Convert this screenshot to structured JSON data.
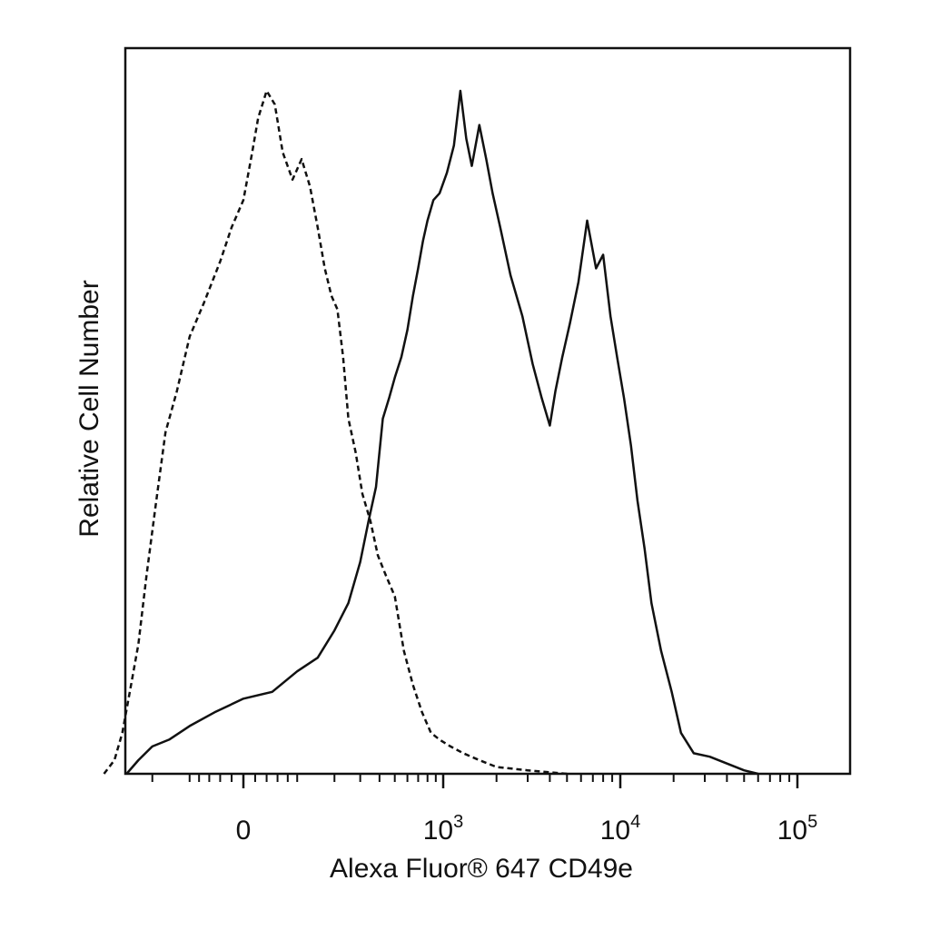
{
  "chart_data": {
    "type": "line",
    "title": "",
    "xlabel": "Alexa Fluor® 647 CD49e",
    "ylabel": "Relative Cell Number",
    "x_scale": "biexponential",
    "xlim": [
      -500,
      200000
    ],
    "ylim": [
      0,
      100
    ],
    "grid": false,
    "legend": "none",
    "x_tick_labels": [
      {
        "value": 0,
        "base": "0",
        "exp": ""
      },
      {
        "value": 1000,
        "base": "10",
        "exp": "3"
      },
      {
        "value": 10000,
        "base": "10",
        "exp": "4"
      },
      {
        "value": 100000,
        "base": "10",
        "exp": "5"
      }
    ],
    "series": [
      {
        "style": "dashed",
        "color": "#111111",
        "points": [
          [
            -420,
            0
          ],
          [
            -360,
            2
          ],
          [
            -320,
            6
          ],
          [
            -280,
            13
          ],
          [
            -250,
            19
          ],
          [
            -220,
            29
          ],
          [
            -190,
            39
          ],
          [
            -160,
            50
          ],
          [
            -130,
            56
          ],
          [
            -100,
            64
          ],
          [
            -70,
            69
          ],
          [
            -40,
            75
          ],
          [
            -20,
            80
          ],
          [
            0,
            84
          ],
          [
            15,
            91
          ],
          [
            25,
            96
          ],
          [
            40,
            100
          ],
          [
            55,
            98
          ],
          [
            70,
            91
          ],
          [
            90,
            87
          ],
          [
            110,
            90
          ],
          [
            130,
            86
          ],
          [
            150,
            80
          ],
          [
            170,
            74
          ],
          [
            190,
            70
          ],
          [
            210,
            68
          ],
          [
            230,
            61
          ],
          [
            250,
            52
          ],
          [
            280,
            47
          ],
          [
            310,
            41
          ],
          [
            350,
            37
          ],
          [
            390,
            32
          ],
          [
            440,
            29
          ],
          [
            500,
            26
          ],
          [
            570,
            18
          ],
          [
            650,
            13
          ],
          [
            740,
            9
          ],
          [
            840,
            6
          ],
          [
            950,
            5
          ],
          [
            1100,
            4
          ],
          [
            1300,
            3
          ],
          [
            1600,
            2
          ],
          [
            2000,
            1
          ],
          [
            3000,
            0.5
          ],
          [
            5000,
            0
          ]
        ]
      },
      {
        "style": "solid",
        "color": "#111111",
        "points": [
          [
            -300,
            0
          ],
          [
            -250,
            2
          ],
          [
            -200,
            4
          ],
          [
            -150,
            5
          ],
          [
            -100,
            7
          ],
          [
            -50,
            9
          ],
          [
            0,
            11
          ],
          [
            50,
            12
          ],
          [
            100,
            15
          ],
          [
            150,
            17
          ],
          [
            200,
            21
          ],
          [
            250,
            25
          ],
          [
            300,
            31
          ],
          [
            340,
            37
          ],
          [
            380,
            42
          ],
          [
            420,
            52
          ],
          [
            460,
            55
          ],
          [
            500,
            58
          ],
          [
            550,
            61
          ],
          [
            600,
            65
          ],
          [
            650,
            70
          ],
          [
            700,
            74
          ],
          [
            750,
            78
          ],
          [
            800,
            81
          ],
          [
            870,
            84
          ],
          [
            950,
            85
          ],
          [
            1050,
            88
          ],
          [
            1150,
            92
          ],
          [
            1250,
            100
          ],
          [
            1350,
            93
          ],
          [
            1450,
            89
          ],
          [
            1600,
            95
          ],
          [
            1750,
            90
          ],
          [
            1900,
            85
          ],
          [
            2100,
            80
          ],
          [
            2400,
            73
          ],
          [
            2800,
            67
          ],
          [
            3200,
            60
          ],
          [
            3600,
            55
          ],
          [
            4000,
            51
          ],
          [
            4300,
            56
          ],
          [
            4700,
            61
          ],
          [
            5200,
            66
          ],
          [
            5800,
            72
          ],
          [
            6500,
            81
          ],
          [
            7300,
            74
          ],
          [
            8000,
            76
          ],
          [
            8800,
            67
          ],
          [
            9600,
            61
          ],
          [
            10500,
            55
          ],
          [
            11500,
            48
          ],
          [
            12500,
            40
          ],
          [
            13700,
            33
          ],
          [
            15000,
            25
          ],
          [
            17000,
            18
          ],
          [
            19500,
            12
          ],
          [
            22000,
            6
          ],
          [
            26000,
            3
          ],
          [
            32000,
            2.5
          ],
          [
            40000,
            1.5
          ],
          [
            50000,
            0.5
          ],
          [
            60000,
            0
          ]
        ]
      }
    ]
  }
}
